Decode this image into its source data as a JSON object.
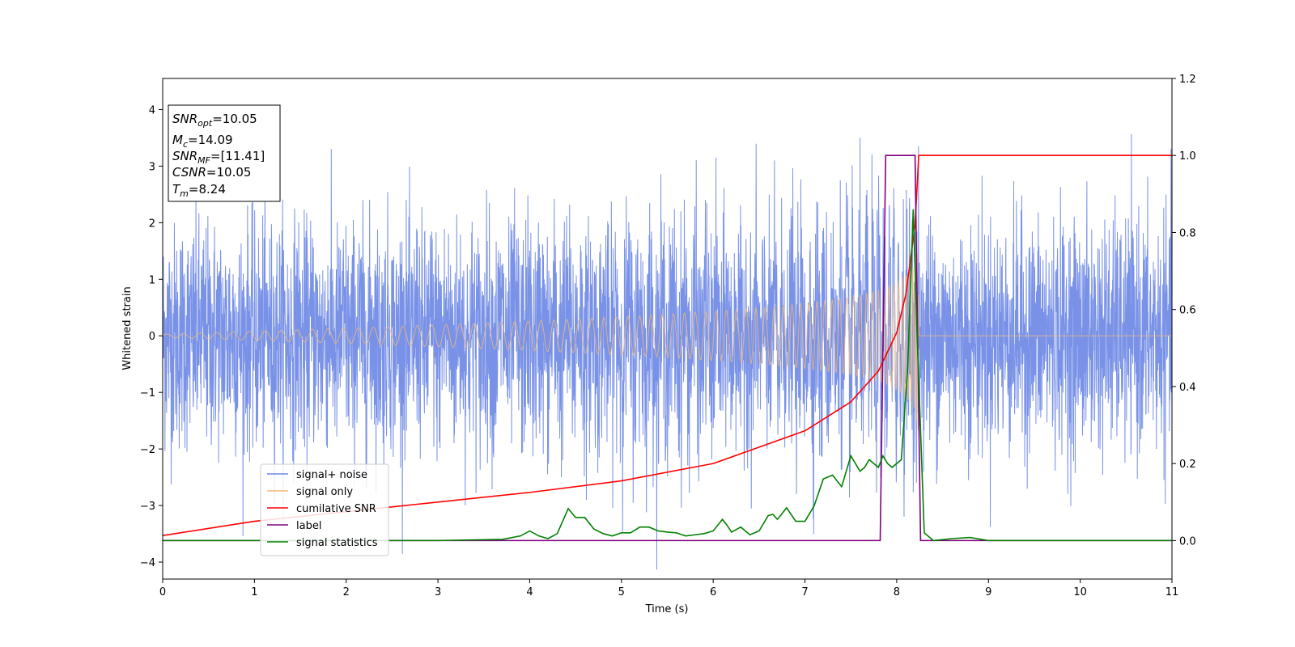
{
  "chart_data": {
    "type": "line",
    "xlabel": "Time (s)",
    "ylabel": "Whitened strain",
    "xlim": [
      0,
      11
    ],
    "ylim_left": [
      -4.3,
      4.55
    ],
    "ylim_right": [
      -0.1,
      1.2
    ],
    "x_ticks": [
      "0",
      "1",
      "2",
      "3",
      "4",
      "5",
      "6",
      "7",
      "8",
      "9",
      "10",
      "11"
    ],
    "y_left_ticks": [
      "4",
      "3",
      "2",
      "1",
      "0",
      "−1",
      "−2",
      "−3",
      "−4"
    ],
    "y_right_ticks": [
      "1.2",
      "1.0",
      "0.8",
      "0.6",
      "0.4",
      "0.2",
      "0.0"
    ],
    "grid": false,
    "legend_position": "lower-left",
    "colors": {
      "noise": "#6a86e4",
      "signal": "#f3b97a",
      "snr": "#ff0000",
      "label": "#800080",
      "stats": "#008000"
    },
    "legend": [
      {
        "key": "noise",
        "label": "signal+ noise"
      },
      {
        "key": "signal",
        "label": "signal only"
      },
      {
        "key": "snr",
        "label": "cumilative SNR"
      },
      {
        "key": "label",
        "label": "label"
      },
      {
        "key": "stats",
        "label": "signal statistics"
      }
    ],
    "annotations": [
      {
        "sym": "SNR",
        "sub": "opt",
        "rest": "=10.05"
      },
      {
        "sym": "M",
        "sub": "c",
        "rest": "=14.09"
      },
      {
        "sym": "SNR",
        "sub": "MF",
        "rest": "=[11.41]"
      },
      {
        "sym": "CSNR",
        "sub": "",
        "rest": "=10.05"
      },
      {
        "sym": "T",
        "sub": "m",
        "rest": "=8.24"
      }
    ],
    "signal_envelope": {
      "t_start": 0.0,
      "t_merge": 8.24,
      "amp_start": 0.03,
      "amp_peak": 1.85
    },
    "cumulative_snr": {
      "axis": "right",
      "x": [
        0,
        1,
        2,
        3,
        4,
        5,
        6,
        7,
        7.5,
        7.8,
        8.0,
        8.1,
        8.2,
        8.24,
        11
      ],
      "y": [
        0.013,
        0.05,
        0.075,
        0.1,
        0.125,
        0.155,
        0.2,
        0.285,
        0.36,
        0.44,
        0.54,
        0.64,
        0.82,
        1.0,
        1.0
      ]
    },
    "label_series": {
      "axis": "right",
      "x": [
        0,
        7.82,
        7.88,
        8.2,
        8.26,
        11
      ],
      "y": [
        0,
        0,
        1,
        1,
        0,
        0
      ]
    },
    "signal_statistics": {
      "axis": "right",
      "x": [
        0,
        1,
        2,
        3,
        3.7,
        3.9,
        4.0,
        4.1,
        4.2,
        4.3,
        4.42,
        4.5,
        4.6,
        4.7,
        4.8,
        4.9,
        5.0,
        5.1,
        5.2,
        5.3,
        5.4,
        5.5,
        5.6,
        5.7,
        5.8,
        5.9,
        6.0,
        6.1,
        6.15,
        6.2,
        6.3,
        6.4,
        6.5,
        6.6,
        6.65,
        6.7,
        6.8,
        6.9,
        7.0,
        7.1,
        7.2,
        7.3,
        7.4,
        7.5,
        7.6,
        7.65,
        7.7,
        7.8,
        7.85,
        7.9,
        7.95,
        8.05,
        8.12,
        8.18,
        8.22,
        8.3,
        8.4,
        8.6,
        8.8,
        9.0,
        10,
        11
      ],
      "y": [
        0.0,
        0.0,
        0.0,
        0.0,
        0.003,
        0.012,
        0.025,
        0.012,
        0.005,
        0.018,
        0.083,
        0.06,
        0.06,
        0.03,
        0.018,
        0.012,
        0.02,
        0.02,
        0.035,
        0.035,
        0.025,
        0.022,
        0.02,
        0.012,
        0.015,
        0.018,
        0.025,
        0.055,
        0.04,
        0.022,
        0.035,
        0.015,
        0.025,
        0.065,
        0.068,
        0.055,
        0.085,
        0.05,
        0.05,
        0.09,
        0.16,
        0.17,
        0.14,
        0.22,
        0.18,
        0.19,
        0.21,
        0.19,
        0.22,
        0.2,
        0.19,
        0.21,
        0.45,
        0.86,
        0.55,
        0.02,
        0.0,
        0.005,
        0.008,
        0.0,
        0.0,
        0.0
      ]
    }
  }
}
